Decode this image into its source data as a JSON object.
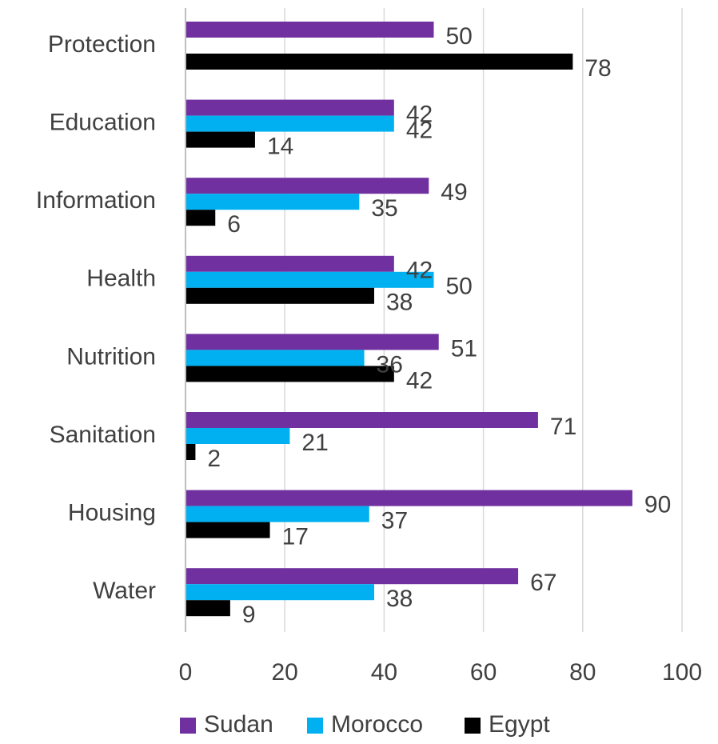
{
  "chart_data": {
    "type": "bar",
    "orientation": "horizontal",
    "categories": [
      "Protection",
      "Education",
      "Information",
      "Health",
      "Nutrition",
      "Sanitation",
      "Housing",
      "Water"
    ],
    "series": [
      {
        "name": "Sudan",
        "color": "#7030A0",
        "values": [
          50,
          42,
          49,
          42,
          51,
          71,
          90,
          67
        ]
      },
      {
        "name": "Morocco",
        "color": "#00B0F0",
        "values": [
          null,
          42,
          35,
          50,
          36,
          21,
          37,
          38
        ]
      },
      {
        "name": "Egypt",
        "color": "#000000",
        "values": [
          78,
          14,
          6,
          38,
          42,
          2,
          17,
          9
        ]
      }
    ],
    "xlim": [
      0,
      100
    ],
    "x_ticks": [
      0,
      20,
      40,
      60,
      80,
      100
    ],
    "grid": true,
    "legend_position": "bottom",
    "data_labels": true
  }
}
